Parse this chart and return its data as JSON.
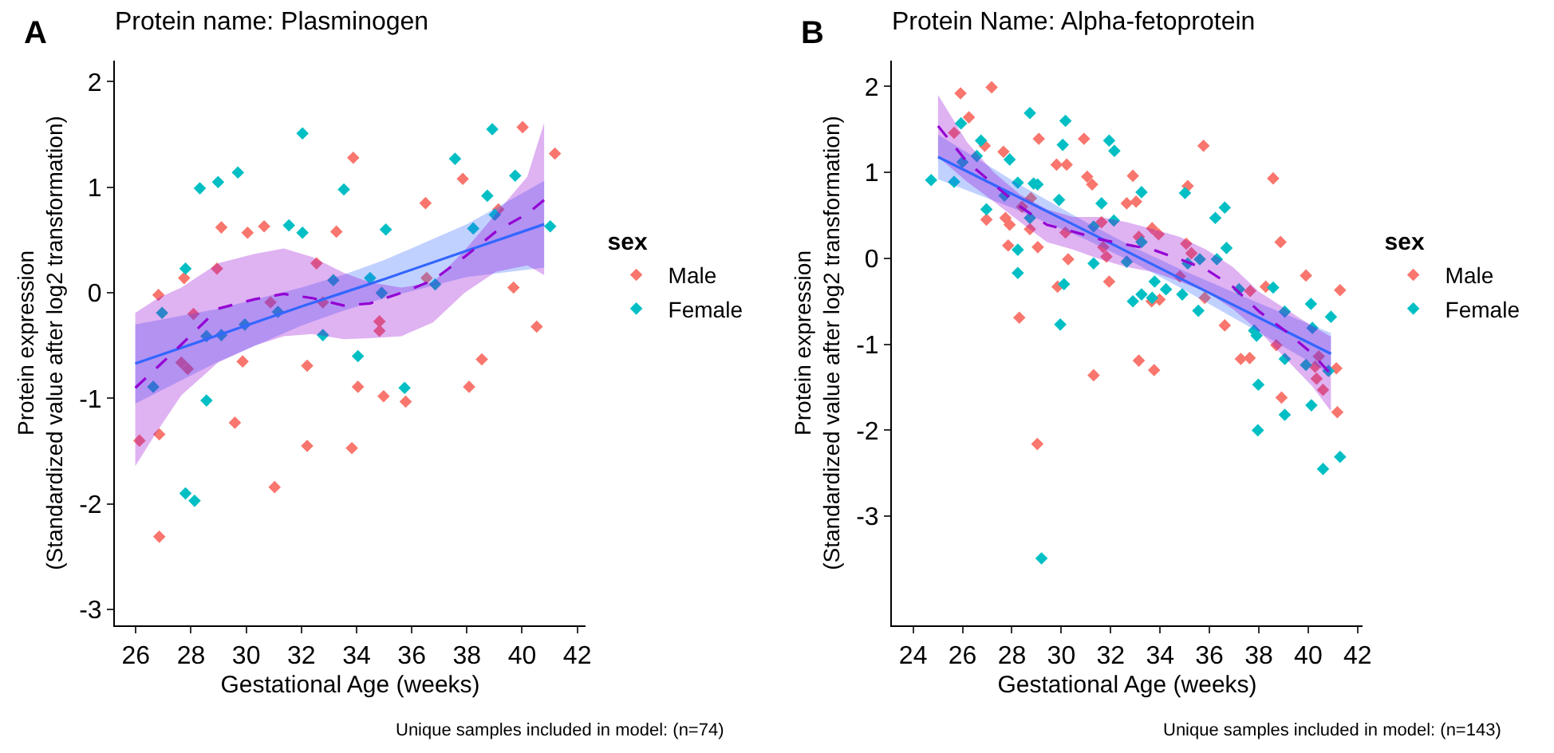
{
  "chart_data": [
    {
      "type": "scatter",
      "title": "Protein name: Plasminogen",
      "xlabel": "Gestational Age (weeks)",
      "ylabel": "Protein expression\n(Standardized value after log2 transformation)",
      "legend_title": "sex",
      "legend": "right",
      "grid": false,
      "marker": "diamond",
      "annotations": [
        "A",
        "Unique samples included in model: (n=74)"
      ],
      "xlim": [
        25.24,
        42.3
      ],
      "xticks": [
        26,
        28,
        30,
        32,
        34,
        36,
        38,
        40,
        42
      ],
      "ylim": [
        -3.15,
        2.2
      ],
      "yticks": [
        -3,
        -2,
        -1,
        0,
        1,
        2
      ],
      "series": [
        {
          "name": "Male",
          "color": "#f8766d",
          "x": [
            26.13,
            26.82,
            26.85,
            26.85,
            27.75,
            27.65,
            27.88,
            28.09,
            28.94,
            29.1,
            29.59,
            29.87,
            30.05,
            30.65,
            30.88,
            31.03,
            32.21,
            32.21,
            32.55,
            32.78,
            33.27,
            33.83,
            33.88,
            34.05,
            34.83,
            34.83,
            34.98,
            35.78,
            36.5,
            36.54,
            37.85,
            38.08,
            38.54,
            39.14,
            39.69,
            40.02,
            40.53,
            41.19
          ],
          "values": [
            -1.4,
            -0.02,
            -1.34,
            -2.31,
            0.14,
            -0.66,
            -0.72,
            -0.2,
            0.23,
            0.62,
            -1.23,
            -0.65,
            0.57,
            0.63,
            -0.09,
            -1.84,
            -0.69,
            -1.45,
            0.28,
            -0.09,
            0.58,
            -1.47,
            1.28,
            -0.89,
            -0.27,
            -0.36,
            -0.98,
            -1.03,
            0.85,
            0.14,
            1.08,
            -0.89,
            -0.63,
            0.79,
            0.05,
            1.57,
            -0.32,
            1.32
          ]
        },
        {
          "name": "Female",
          "color": "#00bfc4",
          "x": [
            26.63,
            26.95,
            27.8,
            27.8,
            28.13,
            28.32,
            28.56,
            28.56,
            28.98,
            29.1,
            29.7,
            29.95,
            31.15,
            31.55,
            32.04,
            32.04,
            32.78,
            33.16,
            33.54,
            34.05,
            34.49,
            34.91,
            35.06,
            35.74,
            36.85,
            37.57,
            38.23,
            38.74,
            38.92,
            39.01,
            39.75,
            41.02
          ],
          "values": [
            -0.89,
            -0.19,
            0.23,
            -1.9,
            -1.97,
            0.99,
            -1.02,
            -0.41,
            1.05,
            -0.4,
            1.14,
            -0.3,
            -0.18,
            0.64,
            1.51,
            0.57,
            -0.4,
            0.12,
            0.98,
            -0.6,
            0.14,
            0.0,
            0.6,
            -0.9,
            0.08,
            1.27,
            0.61,
            0.92,
            1.55,
            0.74,
            1.11,
            0.63
          ]
        },
        {
          "type": "line",
          "color": "#3366ff",
          "line_style": "solid",
          "marker": "none",
          "x": [
            25.98,
            29,
            32,
            33.5,
            35,
            38,
            40.8
          ],
          "values": [
            -0.67,
            -0.4,
            -0.13,
            0.0,
            0.13,
            0.4,
            0.65
          ],
          "lower": [
            -1.05,
            -0.65,
            -0.31,
            -0.17,
            -0.05,
            0.15,
            0.24
          ],
          "upper": [
            -0.3,
            -0.15,
            0.05,
            0.17,
            0.31,
            0.65,
            1.06
          ]
        },
        {
          "type": "line",
          "color": "#9400d3",
          "line_style": "dashed",
          "marker": "none",
          "x": [
            25.98,
            26.8,
            27.65,
            28.98,
            30.31,
            31.36,
            32.4,
            33.54,
            34.49,
            35.63,
            36.77,
            37.91,
            39.05,
            40.19,
            40.8
          ],
          "values": [
            -0.9,
            -0.7,
            -0.49,
            -0.15,
            -0.06,
            -0.01,
            -0.05,
            -0.12,
            -0.1,
            0.0,
            0.12,
            0.34,
            0.58,
            0.75,
            0.88
          ],
          "lower": [
            -1.64,
            -1.3,
            -0.97,
            -0.66,
            -0.5,
            -0.41,
            -0.39,
            -0.44,
            -0.43,
            -0.41,
            -0.28,
            0.0,
            0.2,
            0.26,
            0.17
          ],
          "upper": [
            -0.19,
            -0.05,
            0.05,
            0.28,
            0.37,
            0.42,
            0.34,
            0.19,
            0.1,
            0.05,
            0.1,
            0.4,
            0.75,
            1.1,
            1.61
          ]
        }
      ]
    },
    {
      "type": "scatter",
      "title": "Protein Name: Alpha-fetoprotein",
      "xlabel": "Gestational Age (weeks)",
      "ylabel": "Protein expression\n(Standardized value after log2 transformation)",
      "legend_title": "sex",
      "legend": "right",
      "grid": false,
      "marker": "diamond",
      "annotations": [
        "B",
        "Unique samples included in model: (n=143)"
      ],
      "xlim": [
        23.14,
        42.2
      ],
      "xticks": [
        24,
        26,
        28,
        30,
        32,
        34,
        36,
        38,
        40,
        42
      ],
      "ylim": [
        -4.27,
        2.3
      ],
      "yticks": [
        -3,
        -2,
        -1,
        0,
        1,
        2
      ],
      "series": [
        {
          "name": "Male",
          "color": "#f8766d",
          "x": [
            25.66,
            25.92,
            26.26,
            26.9,
            27.18,
            26.97,
            27.66,
            27.74,
            27.91,
            27.85,
            28.3,
            28.41,
            28.73,
            28.77,
            29.05,
            29.09,
            29.03,
            29.81,
            29.85,
            30.22,
            30.17,
            30.28,
            30.92,
            31.05,
            31.25,
            31.31,
            31.63,
            31.7,
            31.94,
            31.83,
            32.65,
            32.9,
            33.03,
            33.14,
            33.14,
            33.66,
            33.68,
            33.76,
            33.98,
            33.94,
            34.8,
            35.06,
            35.12,
            35.27,
            35.76,
            35.81,
            36.62,
            37.27,
            37.63,
            37.65,
            38.28,
            38.58,
            38.88,
            38.71,
            38.92,
            39.91,
            41.29,
            40.43,
            40.34,
            40.6,
            41.14,
            41.18,
            40.28
          ],
          "values": [
            1.46,
            1.92,
            1.64,
            1.31,
            1.99,
            0.45,
            1.24,
            0.47,
            0.39,
            0.15,
            -0.69,
            0.6,
            0.34,
            0.7,
            0.13,
            1.39,
            -2.16,
            1.09,
            -0.33,
            1.09,
            0.3,
            -0.01,
            1.39,
            0.95,
            0.86,
            -1.36,
            0.42,
            0.13,
            -0.27,
            0.02,
            0.64,
            0.96,
            0.66,
            -1.19,
            0.25,
            -0.5,
            0.35,
            -1.3,
            -0.48,
            0.28,
            -0.21,
            0.17,
            0.84,
            0.06,
            1.31,
            -0.46,
            -0.78,
            -1.17,
            -1.16,
            -0.38,
            -0.33,
            0.93,
            0.19,
            -1.01,
            -1.62,
            -0.2,
            -0.37,
            -1.14,
            -1.4,
            -1.53,
            -1.28,
            -1.79,
            -1.26
          ]
        },
        {
          "name": "Female",
          "color": "#00bfc4",
          "x": [
            24.73,
            25.66,
            25.94,
            26.0,
            26.58,
            26.75,
            26.97,
            27.91,
            27.7,
            28.24,
            28.24,
            28.24,
            28.73,
            28.88,
            29.04,
            28.73,
            29.91,
            29.96,
            30.06,
            30.11,
            30.17,
            31.31,
            31.31,
            31.63,
            31.94,
            32.15,
            32.13,
            32.65,
            32.9,
            33.25,
            33.25,
            33.25,
            33.68,
            33.78,
            34.24,
            34.9,
            35.01,
            35.12,
            35.55,
            35.61,
            36.24,
            36.3,
            36.62,
            36.69,
            37.2,
            37.81,
            37.91,
            37.98,
            37.96,
            38.58,
            39.05,
            39.05,
            39.05,
            29.2,
            40.11,
            40.17,
            39.91,
            40.13,
            40.6,
            40.92,
            41.29,
            40.82
          ],
          "values": [
            0.91,
            0.89,
            1.57,
            1.12,
            1.19,
            1.37,
            0.57,
            1.15,
            0.73,
            0.1,
            -0.17,
            0.88,
            1.69,
            0.87,
            0.86,
            0.47,
            0.68,
            -0.77,
            1.32,
            -0.3,
            1.6,
            -0.06,
            0.37,
            0.64,
            1.37,
            1.25,
            0.44,
            -0.04,
            -0.5,
            0.77,
            0.19,
            -0.42,
            -0.46,
            -0.27,
            -0.36,
            -0.42,
            0.76,
            -0.06,
            -0.61,
            -0.01,
            0.47,
            -0.01,
            0.59,
            0.12,
            -0.36,
            -0.84,
            -0.9,
            -1.47,
            -2.0,
            -0.34,
            -0.62,
            -1.17,
            -1.82,
            -3.49,
            -0.53,
            -0.81,
            -1.24,
            -1.71,
            -2.45,
            -0.68,
            -2.31,
            -1.31
          ]
        },
        {
          "type": "line",
          "color": "#3366ff",
          "line_style": "solid",
          "marker": "none",
          "x": [
            25.01,
            28,
            31,
            33,
            35,
            38,
            40.92
          ],
          "values": [
            1.18,
            0.75,
            0.32,
            0.03,
            -0.26,
            -0.69,
            -1.11
          ],
          "lower": [
            0.92,
            0.59,
            0.22,
            -0.06,
            -0.37,
            -0.86,
            -1.35
          ],
          "upper": [
            1.44,
            0.91,
            0.42,
            0.12,
            -0.15,
            -0.52,
            -0.87
          ]
        },
        {
          "type": "line",
          "color": "#9400d3",
          "line_style": "dashed",
          "marker": "none",
          "x": [
            25.01,
            26.19,
            27.27,
            28.34,
            29.42,
            30.49,
            31.57,
            32.65,
            33.72,
            34.8,
            35.87,
            36.95,
            38.02,
            39.1,
            40.17,
            40.92
          ],
          "values": [
            1.54,
            1.12,
            0.86,
            0.6,
            0.39,
            0.31,
            0.22,
            0.16,
            0.1,
            -0.01,
            -0.13,
            -0.33,
            -0.62,
            -0.85,
            -1.11,
            -1.35
          ],
          "lower": [
            1.18,
            0.89,
            0.66,
            0.42,
            0.19,
            0.1,
            -0.01,
            -0.1,
            -0.16,
            -0.27,
            -0.39,
            -0.59,
            -0.85,
            -1.17,
            -1.49,
            -1.78
          ],
          "upper": [
            1.9,
            1.35,
            1.0,
            0.74,
            0.57,
            0.48,
            0.48,
            0.42,
            0.34,
            0.25,
            0.1,
            -0.1,
            -0.39,
            -0.59,
            -0.79,
            -0.91
          ]
        }
      ]
    }
  ]
}
